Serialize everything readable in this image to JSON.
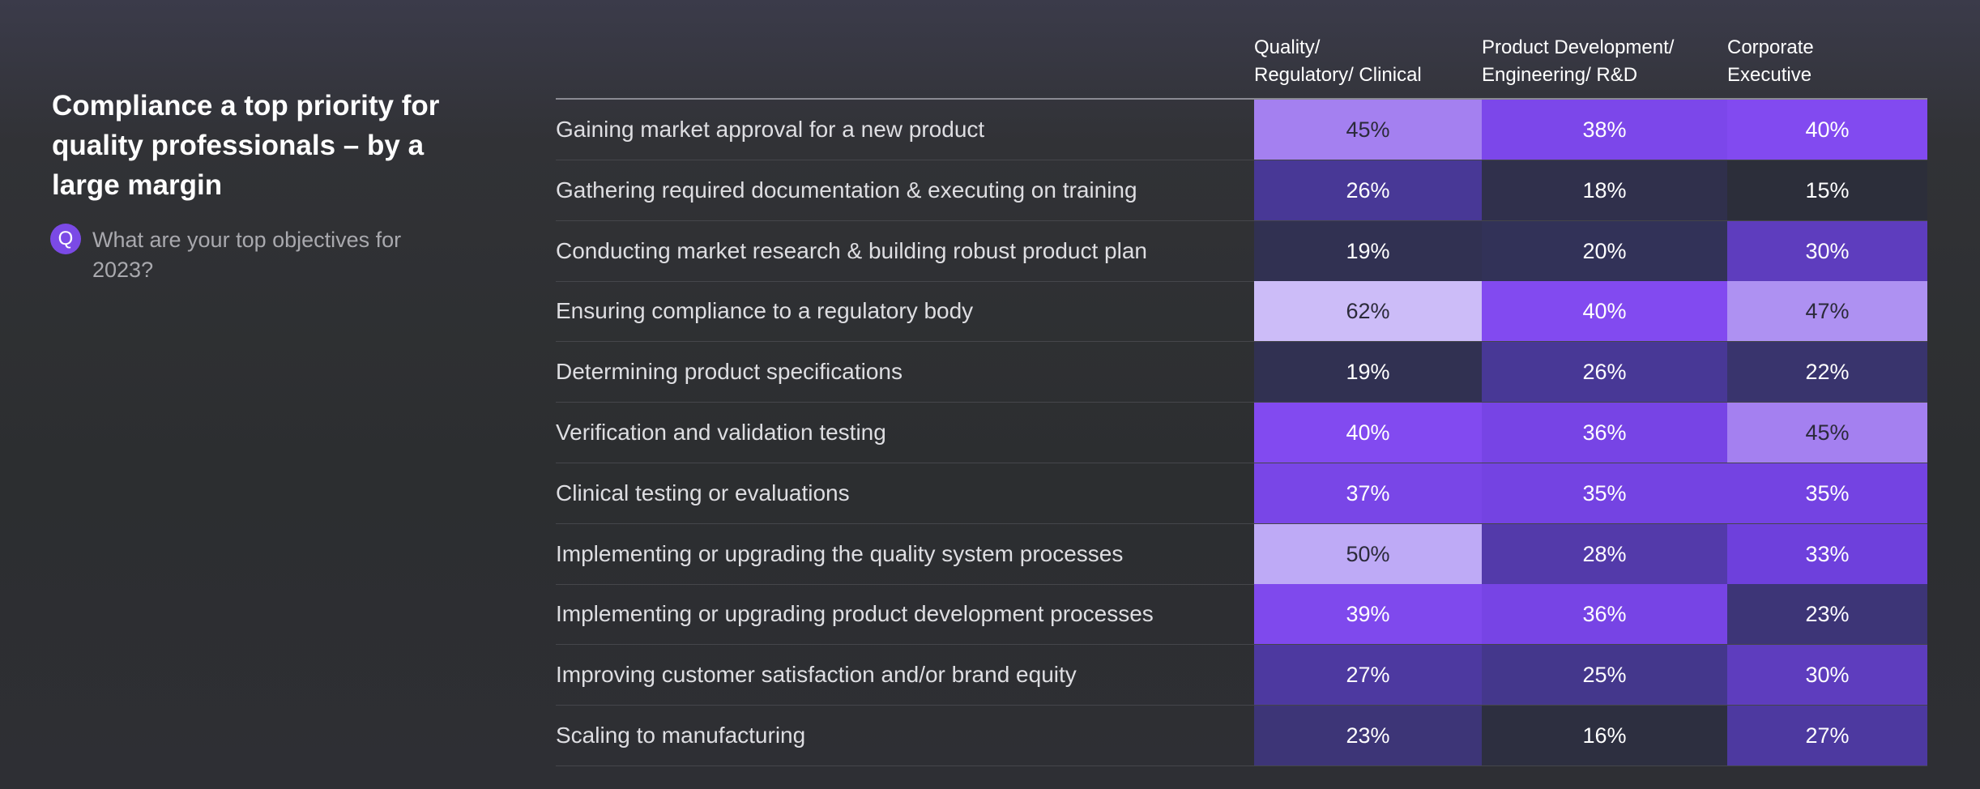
{
  "header": {
    "title": "Compliance a top priority for quality professionals – by a large margin",
    "icon": "Q",
    "question": "What are your top objectives for 2023?"
  },
  "table": {
    "columns": [
      [
        "Quality/",
        "Regulatory/ Clinical"
      ],
      [
        "Product Development/",
        "Engineering/ R&D"
      ],
      [
        "Corporate",
        "Executive"
      ]
    ],
    "rows": [
      {
        "label": "Gaining market approval for a new product",
        "cells": [
          "45%",
          "38%",
          "40%"
        ]
      },
      {
        "label": "Gathering required documentation & executing on training",
        "cells": [
          "26%",
          "18%",
          "15%"
        ]
      },
      {
        "label": "Conducting market research & building robust product plan",
        "cells": [
          "19%",
          "20%",
          "30%"
        ]
      },
      {
        "label": "Ensuring compliance to a regulatory body",
        "cells": [
          "62%",
          "40%",
          "47%"
        ]
      },
      {
        "label": "Determining product specifications",
        "cells": [
          "19%",
          "26%",
          "22%"
        ]
      },
      {
        "label": "Verification and validation testing",
        "cells": [
          "40%",
          "36%",
          "45%"
        ]
      },
      {
        "label": "Clinical testing or evaluations",
        "cells": [
          "37%",
          "35%",
          "35%"
        ]
      },
      {
        "label": "Implementing or upgrading the quality system processes",
        "cells": [
          "50%",
          "28%",
          "33%"
        ]
      },
      {
        "label": "Implementing or upgrading product development processes",
        "cells": [
          "39%",
          "36%",
          "23%"
        ]
      },
      {
        "label": "Improving customer satisfaction and/or brand equity",
        "cells": [
          "27%",
          "25%",
          "30%"
        ]
      },
      {
        "label": "Scaling to manufacturing",
        "cells": [
          "23%",
          "16%",
          "27%"
        ]
      }
    ]
  }
}
